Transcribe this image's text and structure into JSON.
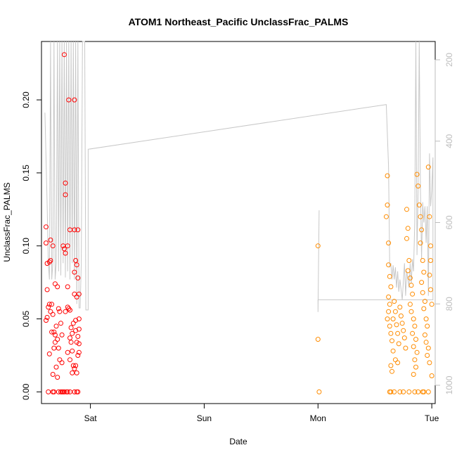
{
  "chart_data": {
    "type": "scatter",
    "title": "ATOM1 Northeast_Pacific UnclassFrac_PALMS",
    "xlabel": "Date",
    "ylabel": "UnclassFrac_PALMS",
    "x_axis": {
      "kind": "date",
      "range_days": [
        -0.43,
        3.03
      ],
      "ticks": [
        {
          "label": "Sat",
          "at_day": 0
        },
        {
          "label": "Sun",
          "at_day": 1
        },
        {
          "label": "Mon",
          "at_day": 2
        },
        {
          "label": "Tue",
          "at_day": 3
        }
      ]
    },
    "ylim": [
      -0.008,
      0.24
    ],
    "y_ticks": [
      0.0,
      0.05,
      0.1,
      0.15,
      0.2
    ],
    "y_tick_labels": [
      "0.00",
      "0.05",
      "0.10",
      "0.15",
      "0.20"
    ],
    "y2_axis": {
      "reversed": true,
      "lim": [
        1045,
        155
      ],
      "ticks": [
        200,
        400,
        600,
        800,
        1000
      ],
      "tick_labels": [
        "200",
        "400",
        "600",
        "800",
        "1000"
      ],
      "color": "#bdbdbd"
    },
    "grid": false,
    "series": [
      {
        "color": "#ff0000",
        "marker": "open-circle",
        "points": [
          [
            -0.39,
            0.113
          ],
          [
            -0.39,
            0.102
          ],
          [
            -0.38,
            0.088
          ],
          [
            -0.36,
            0.089
          ],
          [
            -0.35,
            0.09
          ],
          [
            -0.35,
            0.104
          ],
          [
            -0.33,
            0.1
          ],
          [
            -0.38,
            0.07
          ],
          [
            -0.39,
            0.049
          ],
          [
            -0.38,
            0.051
          ],
          [
            -0.37,
            0.058
          ],
          [
            -0.36,
            0.06
          ],
          [
            -0.34,
            0.06
          ],
          [
            -0.35,
            0.055
          ],
          [
            -0.33,
            0.053
          ],
          [
            -0.34,
            0.041
          ],
          [
            -0.32,
            0.041
          ],
          [
            -0.31,
            0.034
          ],
          [
            -0.32,
            0.03
          ],
          [
            -0.3,
            0.045
          ],
          [
            -0.29,
            0.036
          ],
          [
            -0.31,
            0.074
          ],
          [
            -0.29,
            0.072
          ],
          [
            -0.28,
            0.057
          ],
          [
            -0.27,
            0.055
          ],
          [
            -0.26,
            0.047
          ],
          [
            -0.25,
            0.039
          ],
          [
            -0.3,
            0.017
          ],
          [
            -0.33,
            0.012
          ],
          [
            -0.29,
            0.01
          ],
          [
            -0.27,
            0.022
          ],
          [
            -0.24,
            0.1
          ],
          [
            -0.23,
            0.098
          ],
          [
            -0.22,
            0.095
          ],
          [
            -0.22,
            0.143
          ],
          [
            -0.22,
            0.135
          ],
          [
            -0.23,
            0.231
          ],
          [
            -0.19,
            0.2
          ],
          [
            -0.2,
            0.1
          ],
          [
            -0.2,
            0.072
          ],
          [
            -0.22,
            0.055
          ],
          [
            -0.2,
            0.058
          ],
          [
            -0.19,
            0.057
          ],
          [
            -0.18,
            0.056
          ],
          [
            -0.17,
            0.044
          ],
          [
            -0.16,
            0.04
          ],
          [
            -0.18,
            0.037
          ],
          [
            -0.17,
            0.034
          ],
          [
            -0.15,
            0.047
          ],
          [
            -0.16,
            0.028
          ],
          [
            -0.18,
            0.022
          ],
          [
            -0.15,
            0.018
          ],
          [
            -0.14,
            0.016
          ],
          [
            -0.18,
            0.111
          ],
          [
            -0.14,
            0.111
          ],
          [
            -0.14,
            0.2
          ],
          [
            -0.14,
            0.082
          ],
          [
            -0.13,
            0.09
          ],
          [
            -0.12,
            0.087
          ],
          [
            -0.11,
            0.078
          ],
          [
            -0.14,
            0.067
          ],
          [
            -0.12,
            0.065
          ],
          [
            -0.1,
            0.067
          ],
          [
            -0.11,
            0.111
          ],
          [
            -0.13,
            0.049
          ],
          [
            -0.1,
            0.05
          ],
          [
            -0.13,
            0.042
          ],
          [
            -0.11,
            0.038
          ],
          [
            -0.1,
            0.043
          ],
          [
            -0.12,
            0.034
          ],
          [
            -0.1,
            0.033
          ],
          [
            -0.11,
            0.025
          ],
          [
            -0.13,
            0.018
          ],
          [
            -0.12,
            0.013
          ],
          [
            -0.1,
            0.027
          ],
          [
            -0.37,
            0.0
          ],
          [
            -0.33,
            0.0
          ],
          [
            -0.32,
            0.0
          ],
          [
            -0.28,
            0.0
          ],
          [
            -0.26,
            0.0
          ],
          [
            -0.25,
            0.0
          ],
          [
            -0.24,
            0.0
          ],
          [
            -0.23,
            0.0
          ],
          [
            -0.21,
            0.0
          ],
          [
            -0.2,
            0.0
          ],
          [
            -0.18,
            0.0
          ],
          [
            -0.14,
            0.0
          ],
          [
            -0.12,
            0.0
          ],
          [
            -0.11,
            0.0
          ],
          [
            -0.28,
            0.03
          ],
          [
            -0.25,
            0.02
          ],
          [
            -0.2,
            0.027
          ],
          [
            -0.16,
            0.013
          ],
          [
            -0.36,
            0.026
          ],
          [
            -0.31,
            0.039
          ]
        ]
      },
      {
        "color": "#ff8c00",
        "marker": "open-circle",
        "points": [
          [
            2.0,
            0.1
          ],
          [
            2.0,
            0.036
          ],
          [
            2.01,
            0.0
          ],
          [
            2.61,
            0.128
          ],
          [
            2.6,
            0.12
          ],
          [
            2.62,
            0.102
          ],
          [
            2.62,
            0.087
          ],
          [
            2.61,
            0.148
          ],
          [
            2.63,
            0.079
          ],
          [
            2.64,
            0.072
          ],
          [
            2.62,
            0.065
          ],
          [
            2.63,
            0.06
          ],
          [
            2.62,
            0.055
          ],
          [
            2.61,
            0.05
          ],
          [
            2.63,
            0.045
          ],
          [
            2.64,
            0.04
          ],
          [
            2.65,
            0.035
          ],
          [
            2.67,
            0.062
          ],
          [
            2.68,
            0.055
          ],
          [
            2.66,
            0.05
          ],
          [
            2.69,
            0.046
          ],
          [
            2.7,
            0.04
          ],
          [
            2.71,
            0.033
          ],
          [
            2.66,
            0.028
          ],
          [
            2.68,
            0.022
          ],
          [
            2.64,
            0.018
          ],
          [
            2.65,
            0.014
          ],
          [
            2.7,
            0.02
          ],
          [
            2.72,
            0.058
          ],
          [
            2.73,
            0.052
          ],
          [
            2.74,
            0.047
          ],
          [
            2.75,
            0.042
          ],
          [
            2.76,
            0.037
          ],
          [
            2.77,
            0.03
          ],
          [
            2.78,
            0.125
          ],
          [
            2.79,
            0.112
          ],
          [
            2.78,
            0.105
          ],
          [
            2.8,
            0.09
          ],
          [
            2.79,
            0.083
          ],
          [
            2.81,
            0.078
          ],
          [
            2.82,
            0.073
          ],
          [
            2.83,
            0.067
          ],
          [
            2.81,
            0.06
          ],
          [
            2.82,
            0.055
          ],
          [
            2.84,
            0.05
          ],
          [
            2.85,
            0.045
          ],
          [
            2.83,
            0.04
          ],
          [
            2.86,
            0.036
          ],
          [
            2.84,
            0.031
          ],
          [
            2.87,
            0.027
          ],
          [
            2.85,
            0.022
          ],
          [
            2.86,
            0.017
          ],
          [
            2.84,
            0.012
          ],
          [
            2.87,
            0.149
          ],
          [
            2.88,
            0.141
          ],
          [
            2.89,
            0.128
          ],
          [
            2.9,
            0.12
          ],
          [
            2.91,
            0.111
          ],
          [
            2.9,
            0.102
          ],
          [
            2.92,
            0.09
          ],
          [
            2.93,
            0.082
          ],
          [
            2.91,
            0.075
          ],
          [
            2.92,
            0.068
          ],
          [
            2.94,
            0.062
          ],
          [
            2.93,
            0.057
          ],
          [
            2.95,
            0.05
          ],
          [
            2.96,
            0.045
          ],
          [
            2.94,
            0.039
          ],
          [
            2.95,
            0.034
          ],
          [
            2.97,
            0.03
          ],
          [
            2.96,
            0.025
          ],
          [
            2.98,
            0.02
          ],
          [
            2.97,
            0.154
          ],
          [
            2.98,
            0.12
          ],
          [
            2.99,
            0.1
          ],
          [
            2.99,
            0.09
          ],
          [
            2.98,
            0.08
          ],
          [
            2.99,
            0.07
          ],
          [
            3.0,
            0.06
          ],
          [
            3.0,
            0.011
          ],
          [
            2.63,
            0.0
          ],
          [
            2.64,
            0.0
          ],
          [
            2.67,
            0.0
          ],
          [
            2.72,
            0.0
          ],
          [
            2.75,
            0.0
          ],
          [
            2.8,
            0.0
          ],
          [
            2.85,
            0.0
          ],
          [
            2.88,
            0.0
          ],
          [
            2.92,
            0.0
          ],
          [
            2.93,
            0.0
          ],
          [
            2.97,
            0.0
          ]
        ]
      }
    ],
    "secondary_line": {
      "color": "#c8c8c8",
      "points": [
        [
          -0.4,
          330
        ],
        [
          -0.38,
          560
        ],
        [
          -0.37,
          700
        ],
        [
          -0.36,
          740
        ],
        [
          -0.35,
          155
        ],
        [
          -0.34,
          740
        ],
        [
          -0.33,
          700
        ],
        [
          -0.32,
          155
        ],
        [
          -0.31,
          740
        ],
        [
          -0.3,
          700
        ],
        [
          -0.29,
          155
        ],
        [
          -0.28,
          720
        ],
        [
          -0.27,
          155
        ],
        [
          -0.26,
          730
        ],
        [
          -0.25,
          155
        ],
        [
          -0.24,
          700
        ],
        [
          -0.23,
          155
        ],
        [
          -0.22,
          735
        ],
        [
          -0.21,
          155
        ],
        [
          -0.2,
          720
        ],
        [
          -0.19,
          155
        ],
        [
          -0.18,
          740
        ],
        [
          -0.17,
          155
        ],
        [
          -0.16,
          700
        ],
        [
          -0.15,
          155
        ],
        [
          -0.14,
          740
        ],
        [
          -0.13,
          155
        ],
        [
          -0.12,
          800
        ],
        [
          -0.11,
          155
        ],
        [
          -0.1,
          810
        ],
        [
          -0.09,
          810
        ],
        [
          -0.08,
          700
        ],
        [
          -0.07,
          155
        ],
        [
          -0.05,
          155
        ],
        [
          -0.04,
          815
        ],
        [
          -0.02,
          815
        ],
        [
          -0.02,
          420
        ],
        [
          2.6,
          310
        ],
        [
          2.62,
          460
        ],
        [
          2.63,
          710
        ],
        [
          2.64,
          700
        ],
        [
          2.65,
          740
        ],
        [
          2.66,
          705
        ],
        [
          2.67,
          740
        ],
        [
          2.68,
          710
        ],
        [
          2.69,
          760
        ],
        [
          2.7,
          720
        ],
        [
          2.71,
          770
        ],
        [
          2.72,
          740
        ],
        [
          2.74,
          790
        ],
        [
          2.76,
          700
        ],
        [
          2.77,
          780
        ],
        [
          2.78,
          720
        ],
        [
          2.8,
          760
        ],
        [
          2.81,
          700
        ],
        [
          2.82,
          750
        ],
        [
          2.83,
          690
        ],
        [
          2.84,
          720
        ],
        [
          2.85,
          600
        ],
        [
          2.86,
          155
        ],
        [
          2.87,
          680
        ],
        [
          2.88,
          520
        ],
        [
          2.89,
          155
        ],
        [
          2.9,
          520
        ],
        [
          2.91,
          690
        ],
        [
          2.92,
          550
        ],
        [
          2.93,
          600
        ],
        [
          2.94,
          560
        ],
        [
          2.95,
          650
        ],
        [
          2.96,
          560
        ],
        [
          2.97,
          780
        ],
        [
          2.98,
          430
        ],
        [
          2.99,
          560
        ],
        [
          3.0,
          520
        ],
        [
          3.01,
          440
        ],
        [
          3.01,
          790
        ],
        [
          2.99,
          790
        ],
        [
          2.5,
          790
        ],
        [
          2.0,
          790
        ],
        [
          2.0,
          820
        ],
        [
          2.01,
          570
        ]
      ]
    }
  }
}
